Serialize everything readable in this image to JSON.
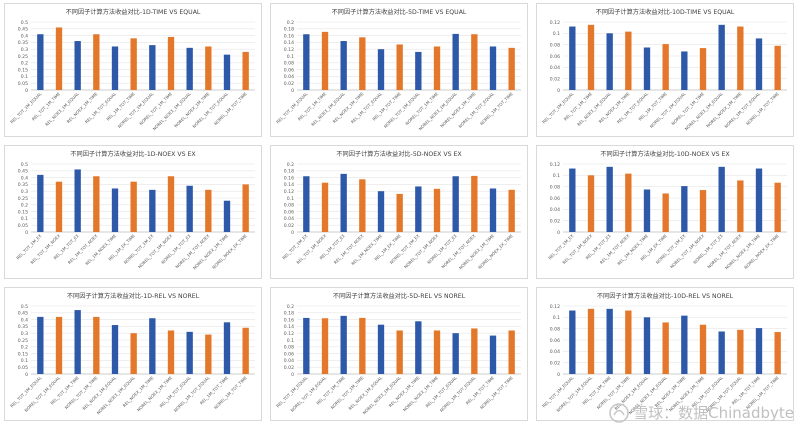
{
  "colors": {
    "blue": "#2E59A8",
    "orange": "#E3782B",
    "gridline": "#e5e5e5",
    "axis": "#bfbfbf",
    "text": "#595959"
  },
  "watermark": {
    "text": "雪球：数据Chinadbyte"
  },
  "chart_data": [
    {
      "type": "bar",
      "title": "不同因子计算方法收益对比-1D-TIME VS EQUAL",
      "categories": [
        "REL_TOT_1M_EQUAL",
        "REL_TOT_1M_TIME",
        "REL_NOEX_1M_EQUAL",
        "REL_NOEX_1M_TIME",
        "REL_1M_TOT_EQUAL",
        "REL_1M_TOT_TIME",
        "NOREL_TOT_1M_EQUAL",
        "NOREL_TOT_1M_TIME",
        "NOREL_NOEX_1M_EQUAL",
        "NOREL_NOEX_1M_TIME",
        "NOREL_1M_TOT_EQUAL",
        "NOREL_1M_TOT_TIME"
      ],
      "values": [
        0.41,
        0.46,
        0.36,
        0.41,
        0.32,
        0.38,
        0.33,
        0.39,
        0.31,
        0.32,
        0.26,
        0.28
      ],
      "ylim": [
        0,
        0.5
      ],
      "yticks": [
        "0",
        "0.05",
        "0.1",
        "0.15",
        "0.2",
        "0.25",
        "0.3",
        "0.35",
        "0.4",
        "0.45",
        "0.5"
      ]
    },
    {
      "type": "bar",
      "title": "不同因子计算方法收益对比-5D-TIME VS EQUAL",
      "categories": [
        "REL_TOT_1M_EQUAL",
        "REL_TOT_1M_TIME",
        "REL_NOEX_1M_EQUAL",
        "REL_NOEX_1M_TIME",
        "REL_1M_TOT_EQUAL",
        "REL_1M_TOT_TIME",
        "NOREL_TOT_1M_EQUAL",
        "NOREL_TOT_1M_TIME",
        "NOREL_NOEX_1M_EQUAL",
        "NOREL_NOEX_1M_TIME",
        "NOREL_1M_TOT_EQUAL",
        "NOREL_1M_TOT_TIME"
      ],
      "values": [
        0.164,
        0.171,
        0.144,
        0.155,
        0.12,
        0.134,
        0.112,
        0.128,
        0.165,
        0.164,
        0.128,
        0.124
      ],
      "ylim": [
        0,
        0.2
      ],
      "yticks": [
        "0",
        "0.02",
        "0.04",
        "0.06",
        "0.08",
        "0.1",
        "0.12",
        "0.14",
        "0.16",
        "0.18",
        "0.2"
      ]
    },
    {
      "type": "bar",
      "title": "不同因子计算方法收益对比-10D-TIME VS EQUAL",
      "categories": [
        "REL_TOT_1M_EQUAL",
        "REL_TOT_1M_TIME",
        "REL_NOEX_1M_EQUAL",
        "REL_NOEX_1M_TIME",
        "REL_1M_TOT_EQUAL",
        "REL_1M_TOT_TIME",
        "NOREL_TOT_1M_EQUAL",
        "NOREL_TOT_1M_TIME",
        "NOREL_NOEX_1M_EQUAL",
        "NOREL_NOEX_1M_TIME",
        "NOREL_1M_TOT_EQUAL",
        "NOREL_1M_TOT_TIME"
      ],
      "values": [
        0.112,
        0.115,
        0.1,
        0.103,
        0.075,
        0.081,
        0.068,
        0.074,
        0.115,
        0.112,
        0.091,
        0.078
      ],
      "ylim": [
        0,
        0.12
      ],
      "yticks": [
        "0",
        "0.02",
        "0.04",
        "0.06",
        "0.08",
        "0.1",
        "0.12"
      ]
    },
    {
      "type": "bar",
      "title": "不同因子计算方法收益对比-1D-NOEX VS EX",
      "categories": [
        "REL_TOT_1M_EX",
        "REL_TOT_1M_NOEX",
        "REL_1M_TOT_EX",
        "REL_1M_TOT_NOEX",
        "REL_1M_NOEX_TIME",
        "REL_1M_EX_TIME",
        "NOREL_TOT_1M_EX",
        "NOREL_TOT_1M_NOEX",
        "NOREL_1M_TOT_EX",
        "NOREL_1M_TOT_NOEX",
        "NOREL_NOEX_1M_TIME",
        "NOREL_NOEX_EX_TIME"
      ],
      "values": [
        0.42,
        0.37,
        0.46,
        0.41,
        0.32,
        0.37,
        0.31,
        0.41,
        0.34,
        0.31,
        0.23,
        0.35
      ],
      "ylim": [
        0,
        0.5
      ],
      "yticks": [
        "0",
        "0.05",
        "0.1",
        "0.15",
        "0.2",
        "0.25",
        "0.3",
        "0.35",
        "0.4",
        "0.45",
        "0.5"
      ]
    },
    {
      "type": "bar",
      "title": "不同因子计算方法收益对比-5D-NOEX VS EX",
      "categories": [
        "REL_TOT_1M_EX",
        "REL_TOT_1M_NOEX",
        "REL_1M_TOT_EX",
        "REL_1M_TOT_NOEX",
        "REL_1M_NOEX_TIME",
        "REL_1M_EX_TIME",
        "NOREL_TOT_1M_EX",
        "NOREL_TOT_1M_NOEX",
        "NOREL_1M_TOT_EX",
        "NOREL_1M_TOT_NOEX",
        "NOREL_NOEX_1M_TIME",
        "NOREL_NOEX_EX_TIME"
      ],
      "values": [
        0.164,
        0.145,
        0.171,
        0.155,
        0.12,
        0.112,
        0.134,
        0.127,
        0.164,
        0.165,
        0.128,
        0.124
      ],
      "ylim": [
        0,
        0.2
      ],
      "yticks": [
        "0",
        "0.02",
        "0.04",
        "0.06",
        "0.08",
        "0.1",
        "0.12",
        "0.14",
        "0.16",
        "0.18",
        "0.2"
      ]
    },
    {
      "type": "bar",
      "title": "不同因子计算方法收益对比-10D-NOEX VS EX",
      "categories": [
        "REL_TOT_1M_EX",
        "REL_TOT_1M_NOEX",
        "REL_1M_TOT_EX",
        "REL_1M_TOT_NOEX",
        "REL_1M_NOEX_TIME",
        "REL_1M_EX_TIME",
        "NOREL_TOT_1M_EX",
        "NOREL_TOT_1M_NOEX",
        "NOREL_1M_TOT_EX",
        "NOREL_1M_TOT_NOEX",
        "NOREL_NOEX_1M_TIME",
        "NOREL_NOEX_EX_TIME"
      ],
      "values": [
        0.112,
        0.1,
        0.115,
        0.103,
        0.075,
        0.068,
        0.081,
        0.074,
        0.115,
        0.091,
        0.112,
        0.087
      ],
      "ylim": [
        0,
        0.12
      ],
      "yticks": [
        "0",
        "0.02",
        "0.04",
        "0.06",
        "0.08",
        "0.1",
        "0.12"
      ]
    },
    {
      "type": "bar",
      "title": "不同因子计算方法收益对比-1D-REL VS NOREL",
      "categories": [
        "REL_TOT_1M_EQUAL",
        "NOREL_TOT_1M_EQUAL",
        "REL_TOT_1M_TIME",
        "NOREL_TOT_1M_TIME",
        "REL_NOEX_1M_EQUAL",
        "NOREL_NOEX_1M_EQUAL",
        "REL_NOEX_1M_TIME",
        "NOREL_NOEX_1M_TIME",
        "REL_1M_TOT_EQUAL",
        "NOREL_1M_TOT_EQUAL",
        "REL_1M_TOT_TIME",
        "NOREL_1M_TOT_TIME"
      ],
      "values": [
        0.42,
        0.42,
        0.47,
        0.42,
        0.36,
        0.3,
        0.41,
        0.32,
        0.31,
        0.29,
        0.38,
        0.34
      ],
      "ylim": [
        0,
        0.5
      ],
      "yticks": [
        "0",
        "0.05",
        "0.1",
        "0.15",
        "0.2",
        "0.25",
        "0.3",
        "0.35",
        "0.4",
        "0.45",
        "0.5"
      ]
    },
    {
      "type": "bar",
      "title": "不同因子计算方法收益对比-5D-REL VS NOREL",
      "categories": [
        "REL_TOT_1M_EQUAL",
        "NOREL_TOT_1M_EQUAL",
        "REL_TOT_1M_TIME",
        "NOREL_TOT_1M_TIME",
        "REL_NOEX_1M_EQUAL",
        "NOREL_NOEX_1M_EQUAL",
        "REL_NOEX_1M_TIME",
        "NOREL_NOEX_1M_TIME",
        "REL_1M_TOT_EQUAL",
        "NOREL_1M_TOT_EQUAL",
        "REL_1M_TOT_TIME",
        "NOREL_1M_TOT_TIME"
      ],
      "values": [
        0.165,
        0.164,
        0.171,
        0.165,
        0.145,
        0.128,
        0.155,
        0.128,
        0.12,
        0.134,
        0.113,
        0.128
      ],
      "ylim": [
        0,
        0.2
      ],
      "yticks": [
        "0",
        "0.02",
        "0.04",
        "0.06",
        "0.08",
        "0.1",
        "0.12",
        "0.14",
        "0.16",
        "0.18",
        "0.2"
      ]
    },
    {
      "type": "bar",
      "title": "不同因子计算方法收益对比-10D-REL VS NOREL",
      "categories": [
        "REL_TOT_1M_EQUAL",
        "NOREL_TOT_1M_EQUAL",
        "REL_TOT_1M_TIME",
        "NOREL_TOT_1M_TIME",
        "REL_NOEX_1M_EQUAL",
        "NOREL_NOEX_1M_EQUAL",
        "REL_NOEX_1M_TIME",
        "NOREL_NOEX_1M_TIME",
        "REL_1M_TOT_EQUAL",
        "NOREL_1M_TOT_EQUAL",
        "REL_1M_TOT_TIME",
        "NOREL_1M_TOT_TIME"
      ],
      "values": [
        0.112,
        0.115,
        0.115,
        0.112,
        0.1,
        0.091,
        0.103,
        0.087,
        0.075,
        0.078,
        0.081,
        0.074
      ],
      "ylim": [
        0,
        0.12
      ],
      "yticks": [
        "0",
        "0.02",
        "0.04",
        "0.06",
        "0.08",
        "0.1",
        "0.12"
      ]
    }
  ]
}
